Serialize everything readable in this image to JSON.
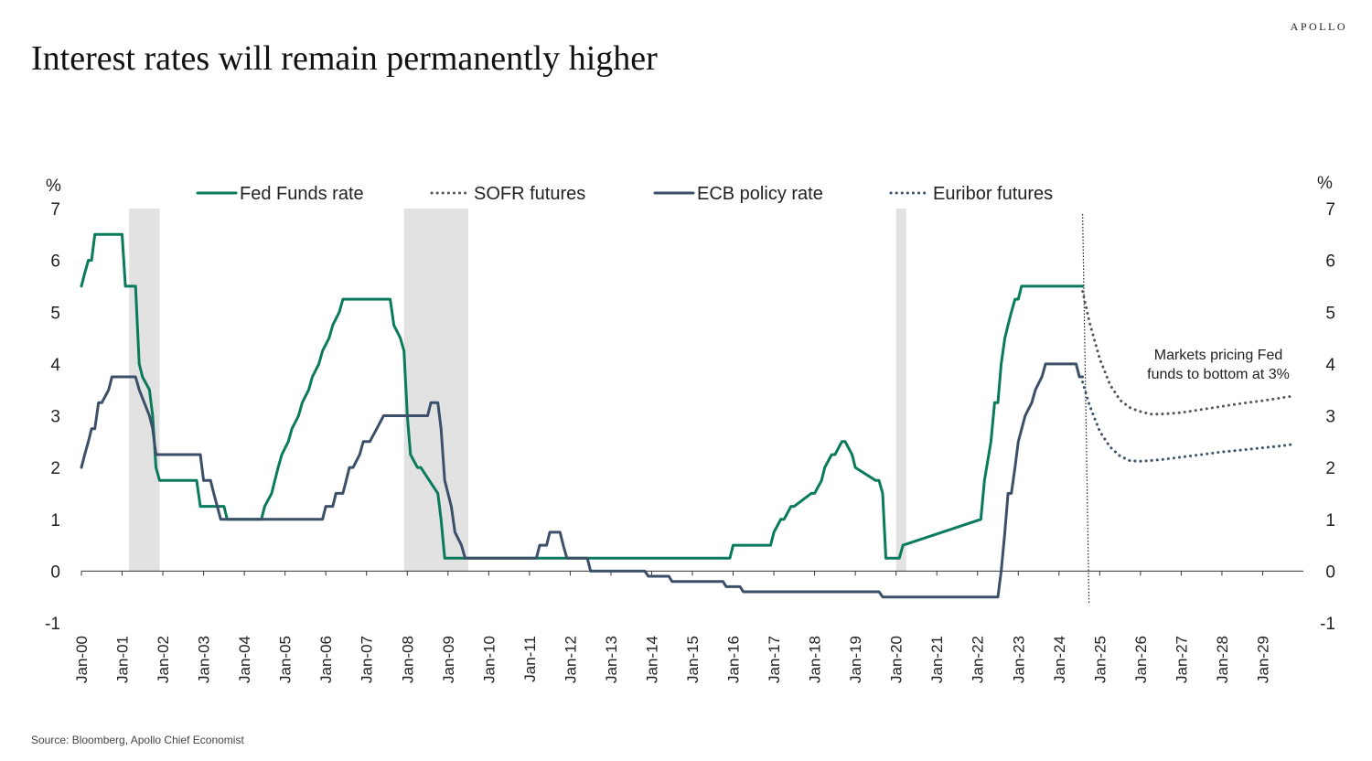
{
  "brand": "APOLLO",
  "title": "Interest rates will remain permanently higher",
  "source": "Source: Bloomberg, Apollo Chief Economist",
  "chart_data": {
    "type": "line",
    "ylabel_left": "%",
    "ylabel_right": "%",
    "ylim": [
      -1,
      7
    ],
    "yticks": [
      -1,
      0,
      1,
      2,
      3,
      4,
      5,
      6,
      7
    ],
    "xlim": [
      2000.0,
      2030.0
    ],
    "xticks": [
      "Jan-00",
      "Jan-01",
      "Jan-02",
      "Jan-03",
      "Jan-04",
      "Jan-05",
      "Jan-06",
      "Jan-07",
      "Jan-08",
      "Jan-09",
      "Jan-10",
      "Jan-11",
      "Jan-12",
      "Jan-13",
      "Jan-14",
      "Jan-15",
      "Jan-16",
      "Jan-17",
      "Jan-18",
      "Jan-19",
      "Jan-20",
      "Jan-21",
      "Jan-22",
      "Jan-23",
      "Jan-24",
      "Jan-25",
      "Jan-26",
      "Jan-27",
      "Jan-28",
      "Jan-29"
    ],
    "grid": false,
    "legend": "top",
    "recessions": [
      [
        2001.17,
        2001.92
      ],
      [
        2007.92,
        2009.5
      ],
      [
        2020.0,
        2020.25
      ]
    ],
    "forecast_start": 2024.58,
    "annotation": [
      "Markets pricing Fed",
      "funds to bottom at 3%"
    ],
    "series": [
      {
        "name": "Fed Funds rate",
        "color": "#0a7a5c",
        "style": "solid",
        "x": [
          2000.0,
          2000.08,
          2000.17,
          2000.25,
          2000.33,
          2000.5,
          2001.0,
          2001.08,
          2001.33,
          2001.42,
          2001.5,
          2001.67,
          2001.75,
          2001.83,
          2001.92,
          2002.83,
          2002.92,
          2003.5,
          2003.58,
          2004.42,
          2004.5,
          2004.67,
          2004.75,
          2004.83,
          2004.92,
          2005.08,
          2005.17,
          2005.33,
          2005.42,
          2005.58,
          2005.67,
          2005.83,
          2005.92,
          2006.08,
          2006.17,
          2006.33,
          2006.42,
          2006.5,
          2007.58,
          2007.67,
          2007.83,
          2007.92,
          2008.0,
          2008.08,
          2008.25,
          2008.33,
          2008.75,
          2008.83,
          2008.92,
          2015.92,
          2016.0,
          2016.92,
          2017.0,
          2017.17,
          2017.25,
          2017.42,
          2017.5,
          2017.92,
          2018.0,
          2018.17,
          2018.25,
          2018.42,
          2018.5,
          2018.67,
          2018.75,
          2018.92,
          2019.0,
          2019.5,
          2019.58,
          2019.67,
          2019.75,
          2019.83,
          2020.08,
          2020.17,
          2022.08,
          2022.17,
          2022.33,
          2022.42,
          2022.5,
          2022.58,
          2022.67,
          2022.75,
          2022.83,
          2022.92,
          2023.0,
          2023.08,
          2023.17,
          2023.33,
          2023.42,
          2023.58,
          2024.58
        ],
        "y": [
          5.5,
          5.75,
          6.0,
          6.0,
          6.5,
          6.5,
          6.5,
          5.5,
          5.5,
          4.0,
          3.75,
          3.5,
          3.0,
          2.0,
          1.75,
          1.75,
          1.25,
          1.25,
          1.0,
          1.0,
          1.25,
          1.5,
          1.75,
          2.0,
          2.25,
          2.5,
          2.75,
          3.0,
          3.25,
          3.5,
          3.75,
          4.0,
          4.25,
          4.5,
          4.75,
          5.0,
          5.25,
          5.25,
          5.25,
          4.75,
          4.5,
          4.25,
          3.0,
          2.25,
          2.0,
          2.0,
          1.5,
          1.0,
          0.25,
          0.25,
          0.5,
          0.5,
          0.75,
          1.0,
          1.0,
          1.25,
          1.25,
          1.5,
          1.5,
          1.75,
          2.0,
          2.25,
          2.25,
          2.5,
          2.5,
          2.25,
          2.0,
          1.75,
          1.75,
          1.5,
          0.25,
          0.25,
          0.25,
          0.5,
          1.0,
          1.75,
          2.5,
          3.25,
          3.25,
          4.0,
          4.5,
          4.75,
          5.0,
          5.25,
          5.25,
          5.5,
          5.5,
          5.5,
          5.5,
          5.5,
          5.5
        ]
      },
      {
        "name": "SOFR futures",
        "color": "#555555",
        "style": "dotted",
        "x": [
          2024.58,
          2024.75,
          2025.0,
          2025.25,
          2025.5,
          2025.75,
          2026.0,
          2026.25,
          2026.5,
          2027.0,
          2027.5,
          2028.0,
          2028.5,
          2029.0,
          2029.5,
          2029.75
        ],
        "y": [
          5.4,
          4.8,
          4.1,
          3.6,
          3.3,
          3.15,
          3.08,
          3.03,
          3.03,
          3.06,
          3.12,
          3.18,
          3.24,
          3.29,
          3.35,
          3.38
        ]
      },
      {
        "name": "ECB policy rate",
        "color": "#3b5068",
        "style": "solid",
        "x": [
          2000.0,
          2000.08,
          2000.17,
          2000.25,
          2000.33,
          2000.42,
          2000.5,
          2000.67,
          2000.75,
          2000.83,
          2001.33,
          2001.42,
          2001.67,
          2001.75,
          2001.83,
          2001.92,
          2002.92,
          2003.0,
          2003.17,
          2003.25,
          2003.42,
          2003.5,
          2005.92,
          2006.0,
          2006.17,
          2006.25,
          2006.42,
          2006.5,
          2006.58,
          2006.67,
          2006.83,
          2006.92,
          2007.08,
          2007.25,
          2007.42,
          2007.5,
          2008.5,
          2008.58,
          2008.75,
          2008.83,
          2008.92,
          2009.08,
          2009.17,
          2009.33,
          2009.42,
          2010.0,
          2011.17,
          2011.25,
          2011.42,
          2011.5,
          2011.75,
          2011.83,
          2011.92,
          2012.42,
          2012.5,
          2013.33,
          2013.42,
          2013.83,
          2013.92,
          2014.42,
          2014.5,
          2015.75,
          2015.83,
          2016.17,
          2016.25,
          2019.58,
          2019.67,
          2022.5,
          2022.58,
          2022.67,
          2022.75,
          2022.83,
          2022.92,
          2023.0,
          2023.17,
          2023.33,
          2023.42,
          2023.58,
          2023.67,
          2024.42,
          2024.5,
          2024.58
        ],
        "y": [
          2.0,
          2.25,
          2.5,
          2.75,
          2.75,
          3.25,
          3.25,
          3.5,
          3.75,
          3.75,
          3.75,
          3.5,
          3.0,
          2.75,
          2.25,
          2.25,
          2.25,
          1.75,
          1.75,
          1.5,
          1.0,
          1.0,
          1.0,
          1.25,
          1.25,
          1.5,
          1.5,
          1.75,
          2.0,
          2.0,
          2.25,
          2.5,
          2.5,
          2.75,
          3.0,
          3.0,
          3.0,
          3.25,
          3.25,
          2.75,
          1.75,
          1.25,
          0.75,
          0.5,
          0.25,
          0.25,
          0.25,
          0.5,
          0.5,
          0.75,
          0.75,
          0.5,
          0.25,
          0.25,
          0.0,
          0.0,
          0.0,
          0.0,
          -0.1,
          -0.1,
          -0.2,
          -0.2,
          -0.3,
          -0.3,
          -0.4,
          -0.4,
          -0.5,
          -0.5,
          0.0,
          0.75,
          1.5,
          1.5,
          2.0,
          2.5,
          3.0,
          3.25,
          3.5,
          3.75,
          4.0,
          4.0,
          3.75,
          3.75
        ]
      },
      {
        "name": "Euribor futures",
        "color": "#3b5068",
        "style": "dotted",
        "x": [
          2024.58,
          2024.75,
          2025.0,
          2025.25,
          2025.5,
          2025.75,
          2026.0,
          2026.5,
          2027.0,
          2027.5,
          2028.0,
          2028.5,
          2029.0,
          2029.5,
          2029.75
        ],
        "y": [
          3.65,
          3.2,
          2.7,
          2.4,
          2.22,
          2.13,
          2.12,
          2.15,
          2.2,
          2.25,
          2.3,
          2.34,
          2.38,
          2.42,
          2.45
        ]
      }
    ]
  }
}
